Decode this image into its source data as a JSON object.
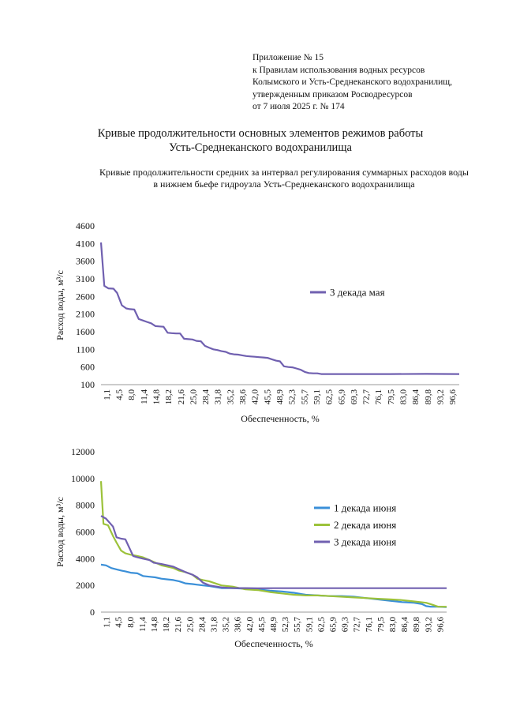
{
  "header": {
    "lines": [
      "Приложение № 15",
      "к Правилам использования водных ресурсов",
      "Колымского и Усть-Среднеканского водохранилищ,",
      "утвержденным приказом Росводресурсов",
      "от 7 июля 2025 г. № 174"
    ]
  },
  "title_lines": [
    "Кривые продолжительности основных элементов режимов работы",
    "Усть-Среднеканского водохранилища"
  ],
  "subtitle_lines": [
    "Кривые продолжительности средних за интервал регулирования суммарных расходов воды",
    "в нижнем бьефе гидроузла Усть-Среднеканского водохранилища"
  ],
  "chart_data": [
    {
      "type": "line",
      "title": "",
      "xlabel": "Обеспеченность, %",
      "ylabel": "Расход воды, м³/с",
      "ylim": [
        100,
        4600
      ],
      "yticks": [
        "100",
        "600",
        "1100",
        "1600",
        "2100",
        "2600",
        "3100",
        "3600",
        "4100",
        "4600"
      ],
      "xlim": [
        1.1,
        99.0
      ],
      "xticks": [
        "1,1",
        "4,5",
        "8,0",
        "11,4",
        "14,8",
        "18,2",
        "21,6",
        "25,0",
        "28,4",
        "31,8",
        "35,2",
        "38,6",
        "42,0",
        "45,5",
        "48,9",
        "52,3",
        "55,7",
        "59,1",
        "62,5",
        "65,9",
        "69,3",
        "72,7",
        "76,1",
        "79,5",
        "83,0",
        "86,4",
        "89,8",
        "93,2",
        "96,6"
      ],
      "legend_position": "right",
      "series": [
        {
          "name": "3 декада мая",
          "color": "#7060B0",
          "x": [
            1.1,
            2.0,
            3.1,
            4.5,
            5.5,
            6.8,
            8.0,
            9.0,
            10.2,
            11.4,
            12.5,
            13.6,
            14.8,
            16.0,
            17.1,
            18.2,
            19.3,
            20.4,
            21.6,
            22.7,
            23.8,
            25.0,
            26.1,
            27.2,
            28.4,
            29.5,
            30.6,
            31.8,
            32.9,
            34.0,
            35.2,
            36.3,
            37.4,
            38.6,
            39.7,
            40.8,
            42.0,
            43.1,
            44.3,
            45.5,
            46.6,
            47.7,
            48.9,
            50.0,
            51.1,
            52.3,
            53.4,
            54.5,
            55.7,
            56.8,
            57.9,
            59.1,
            60.2,
            61.3,
            62.5,
            70.0,
            80.0,
            90.0,
            99.0
          ],
          "values": [
            4130,
            2900,
            2830,
            2820,
            2700,
            2350,
            2260,
            2240,
            2230,
            1960,
            1920,
            1880,
            1840,
            1760,
            1750,
            1740,
            1570,
            1560,
            1550,
            1550,
            1400,
            1390,
            1380,
            1340,
            1330,
            1200,
            1150,
            1100,
            1080,
            1050,
            1030,
            980,
            960,
            950,
            930,
            910,
            900,
            890,
            880,
            870,
            860,
            820,
            780,
            760,
            620,
            600,
            590,
            560,
            520,
            460,
            430,
            420,
            420,
            400,
            400,
            400,
            400,
            405,
            400
          ]
        }
      ]
    },
    {
      "type": "line",
      "title": "",
      "xlabel": "Обеспеченность, %",
      "ylabel": "Расход воды, м³/с",
      "ylim": [
        0,
        12000
      ],
      "yticks": [
        "0",
        "2000",
        "4000",
        "6000",
        "8000",
        "10000",
        "12000"
      ],
      "xlim": [
        1.1,
        99.0
      ],
      "xticks": [
        "1,1",
        "4,5",
        "8,0",
        "11,4",
        "14,8",
        "18,2",
        "21,6",
        "25,0",
        "28,4",
        "31,8",
        "35,2",
        "38,6",
        "42,0",
        "45,5",
        "48,9",
        "52,3",
        "55,7",
        "59,1",
        "62,5",
        "65,9",
        "69,3",
        "72,7",
        "76,1",
        "79,5",
        "83,0",
        "86,4",
        "89,8",
        "93,2",
        "96,6"
      ],
      "legend_position": "right",
      "series": [
        {
          "name": "1 декада июня",
          "color": "#3A8FD8",
          "x": [
            1.1,
            2.5,
            4.0,
            5.5,
            7.0,
            8.0,
            9.5,
            11.4,
            13.0,
            14.8,
            16.5,
            18.2,
            20.0,
            21.6,
            23.3,
            25.0,
            27.0,
            28.4,
            30.0,
            31.8,
            35.2,
            38.6,
            42.0,
            45.5,
            48.9,
            52.3,
            55.7,
            59.1,
            62.5,
            65.9,
            69.3,
            72.7,
            76.1,
            79.5,
            83.0,
            86.4,
            89.8,
            92.0,
            93.2,
            94.5,
            96.6,
            99.0
          ],
          "values": [
            3550,
            3500,
            3300,
            3200,
            3100,
            3050,
            2950,
            2900,
            2700,
            2650,
            2600,
            2500,
            2450,
            2400,
            2300,
            2150,
            2100,
            2050,
            2000,
            1950,
            1800,
            1800,
            1750,
            1700,
            1600,
            1550,
            1450,
            1300,
            1250,
            1200,
            1200,
            1150,
            1050,
            950,
            850,
            750,
            700,
            600,
            450,
            400,
            400,
            380
          ]
        },
        {
          "name": "2 декада июня",
          "color": "#9CC23A",
          "x": [
            1.1,
            1.8,
            3.1,
            4.5,
            5.5,
            6.8,
            8.0,
            9.5,
            11.4,
            13.0,
            14.8,
            16.5,
            18.2,
            20.0,
            21.6,
            23.3,
            25.0,
            27.0,
            28.4,
            30.0,
            31.8,
            35.2,
            38.6,
            42.0,
            45.5,
            48.9,
            52.3,
            55.7,
            59.1,
            62.5,
            65.9,
            69.3,
            72.7,
            76.1,
            79.5,
            83.0,
            86.4,
            89.8,
            93.2,
            95.0,
            96.6,
            99.0
          ],
          "values": [
            9800,
            6600,
            6500,
            5700,
            5200,
            4600,
            4400,
            4300,
            4200,
            4100,
            3900,
            3700,
            3500,
            3400,
            3300,
            3100,
            3000,
            2800,
            2500,
            2400,
            2300,
            2000,
            1900,
            1700,
            1650,
            1500,
            1400,
            1300,
            1250,
            1250,
            1200,
            1150,
            1100,
            1050,
            1000,
            950,
            900,
            800,
            700,
            550,
            400,
            400
          ]
        },
        {
          "name": "3 декада июня",
          "color": "#7060B0",
          "x": [
            1.1,
            2.5,
            4.5,
            5.5,
            6.8,
            8.0,
            10.2,
            11.4,
            13.0,
            14.8,
            16.0,
            18.2,
            20.0,
            21.6,
            23.3,
            25.0,
            27.0,
            28.4,
            30.0,
            31.8,
            35.2,
            38.6,
            42.0,
            45.5,
            50.0,
            60.0,
            70.0,
            80.0,
            90.0,
            99.0
          ],
          "values": [
            7200,
            7000,
            6400,
            5600,
            5500,
            5450,
            4200,
            4100,
            4000,
            3900,
            3700,
            3600,
            3500,
            3400,
            3200,
            3000,
            2800,
            2600,
            2200,
            2000,
            1850,
            1800,
            1800,
            1780,
            1790,
            1790,
            1790,
            1790,
            1790,
            1790
          ]
        }
      ]
    }
  ]
}
